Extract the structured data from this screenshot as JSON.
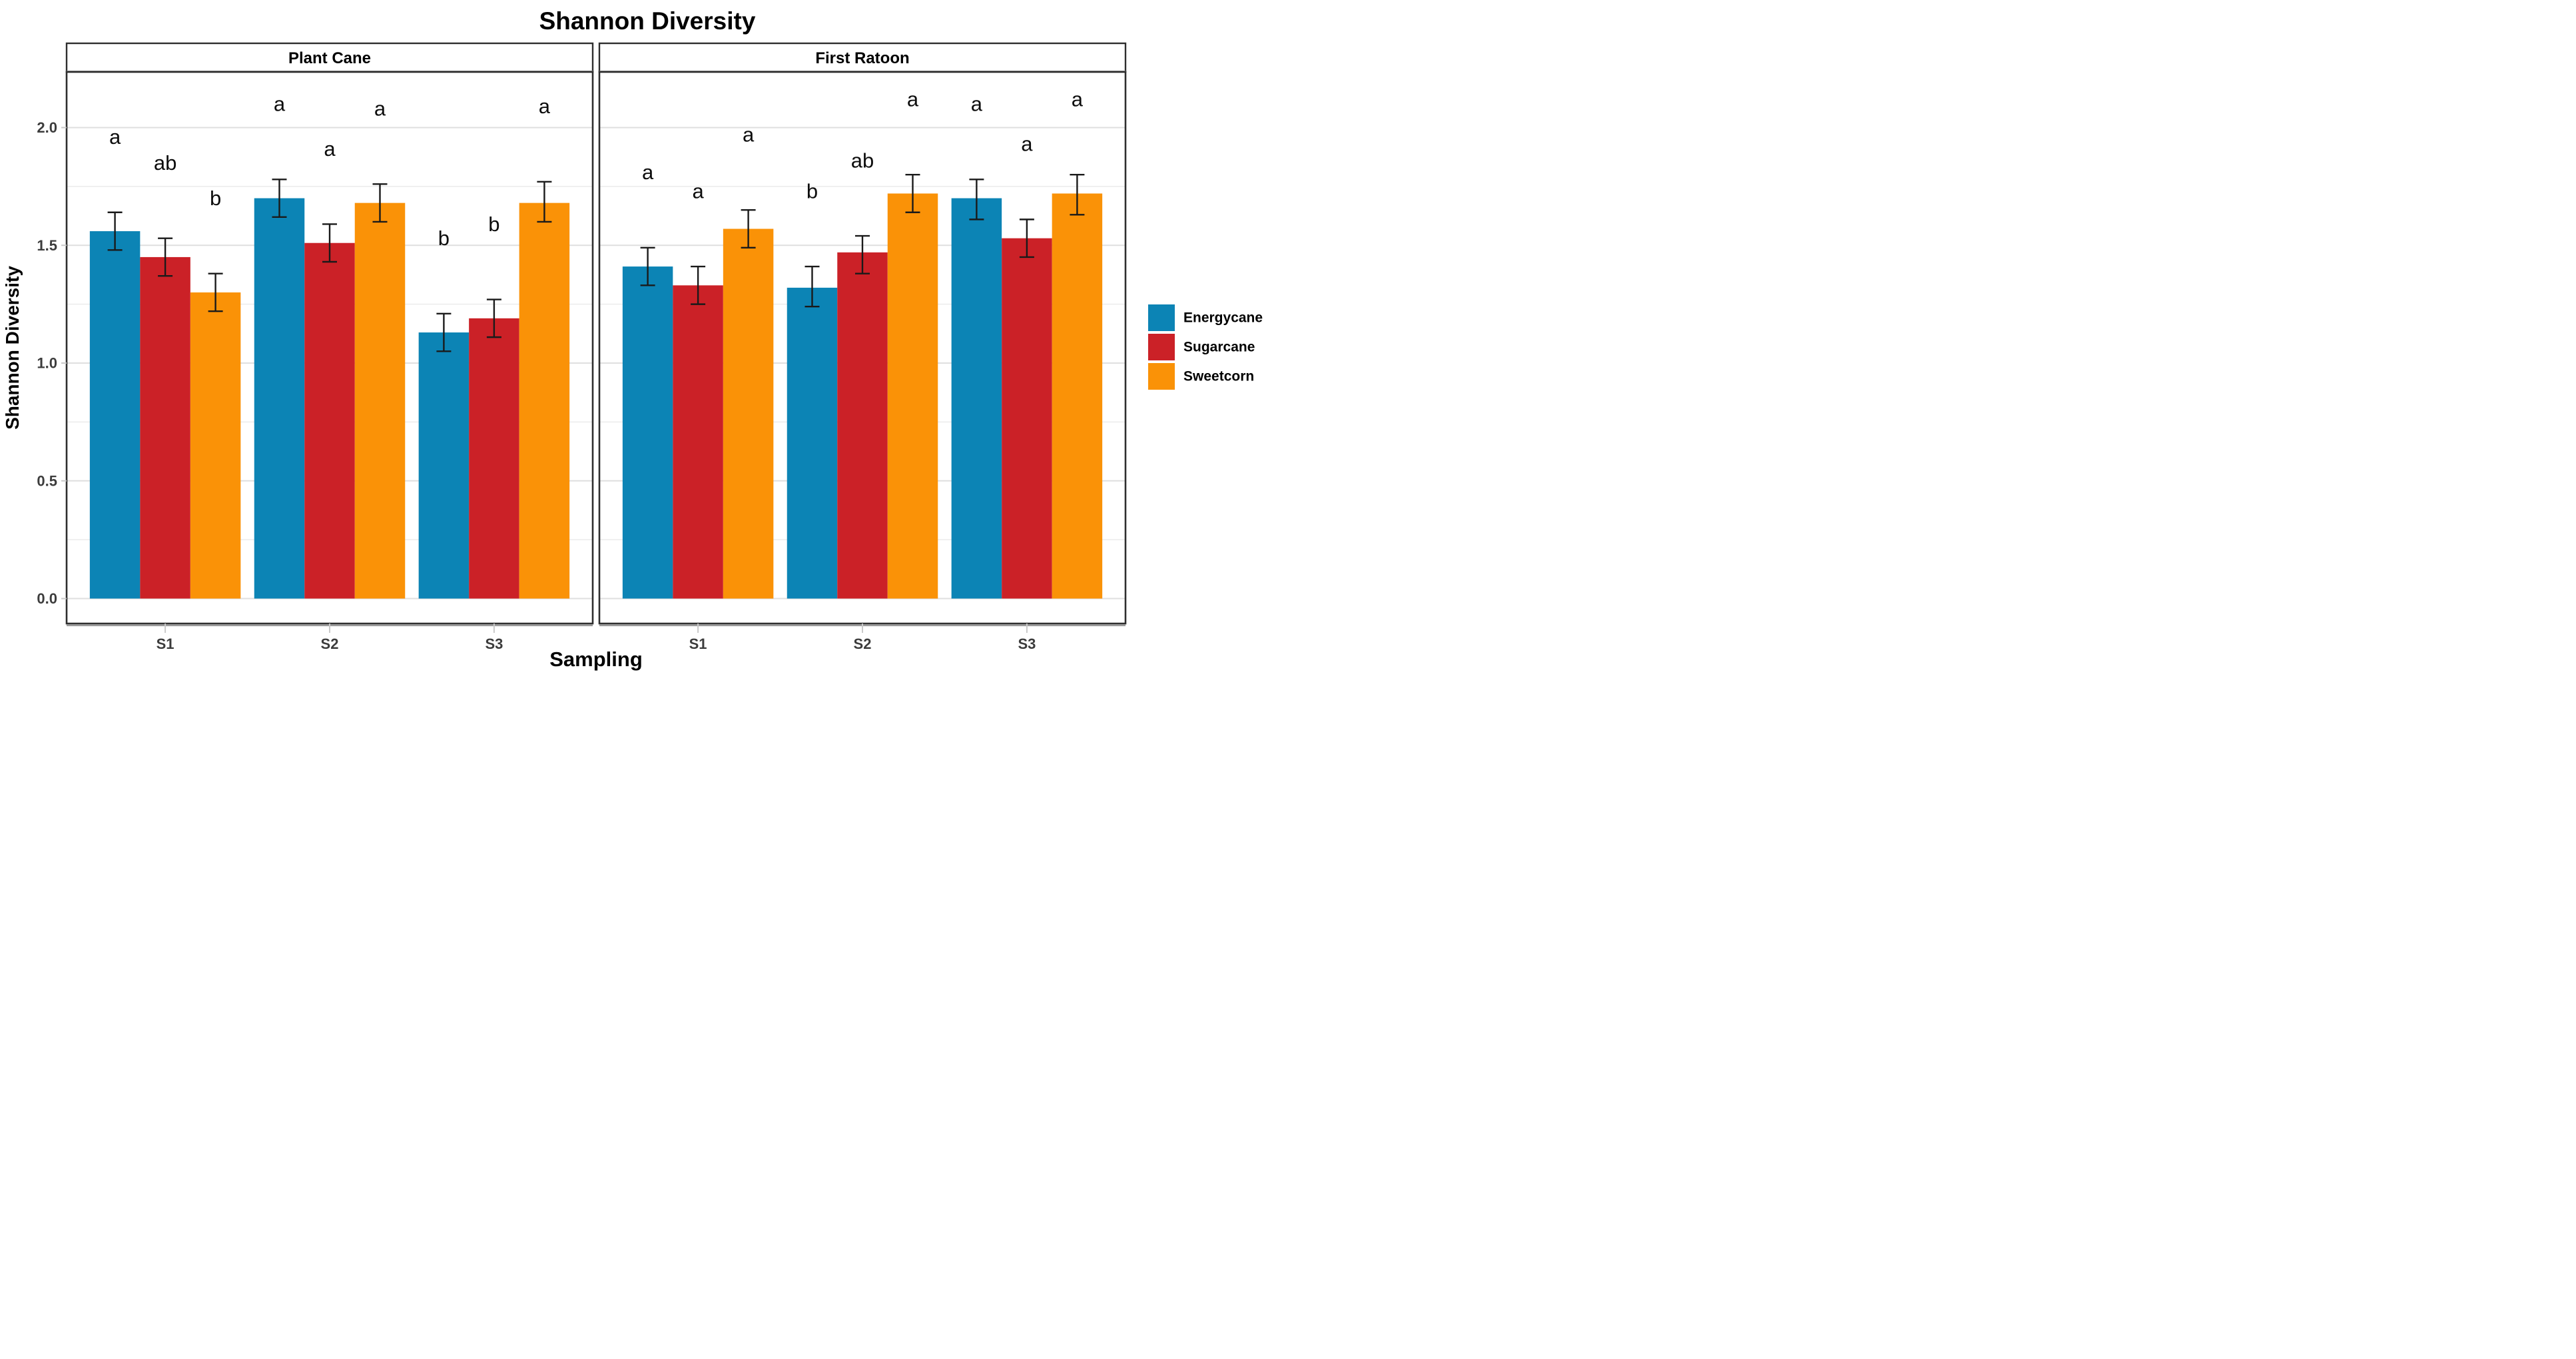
{
  "title": "Shannon Diversity",
  "chart_data": {
    "type": "bar",
    "title": "Shannon Diversity",
    "xlabel": "Sampling",
    "ylabel": "Shannon Diversity",
    "ylim": [
      -0.106,
      2.236
    ],
    "yticks": [
      0,
      0.5,
      1,
      1.5,
      2
    ],
    "ytick_labels": [
      "0.0",
      "0.5",
      "1.0",
      "1.5",
      "2.0"
    ],
    "grid_step": 0.25,
    "grid_on": true,
    "legend_position": "right",
    "categories": [
      "S1",
      "S2",
      "S3"
    ],
    "legend": [
      {
        "name": "Energycane",
        "color": "#0C84B5"
      },
      {
        "name": "Sugarcane",
        "color": "#CB2127"
      },
      {
        "name": "Sweetcorn",
        "color": "#FA9207"
      }
    ],
    "letter_offset": 0.32,
    "facets": [
      {
        "label": "Plant Cane",
        "series": [
          {
            "name": "Energycane",
            "means": [
              1.56,
              1.7,
              1.13
            ],
            "err_low": [
              1.48,
              1.62,
              1.05
            ],
            "err_high": [
              1.64,
              1.78,
              1.21
            ],
            "letters": [
              "a",
              "a",
              "b"
            ]
          },
          {
            "name": "Sugarcane",
            "means": [
              1.45,
              1.51,
              1.19
            ],
            "err_low": [
              1.37,
              1.43,
              1.11
            ],
            "err_high": [
              1.53,
              1.59,
              1.27
            ],
            "letters": [
              "ab",
              "a",
              "b"
            ]
          },
          {
            "name": "Sweetcorn",
            "means": [
              1.3,
              1.68,
              1.68
            ],
            "err_low": [
              1.22,
              1.6,
              1.6
            ],
            "err_high": [
              1.38,
              1.76,
              1.77
            ],
            "letters": [
              "b",
              "a",
              "a"
            ]
          }
        ]
      },
      {
        "label": "First Ratoon",
        "series": [
          {
            "name": "Energycane",
            "means": [
              1.41,
              1.32,
              1.7
            ],
            "err_low": [
              1.33,
              1.24,
              1.61
            ],
            "err_high": [
              1.49,
              1.41,
              1.78
            ],
            "letters": [
              "a",
              "b",
              "a"
            ]
          },
          {
            "name": "Sugarcane",
            "means": [
              1.33,
              1.47,
              1.53
            ],
            "err_low": [
              1.25,
              1.38,
              1.45
            ],
            "err_high": [
              1.41,
              1.54,
              1.61
            ],
            "letters": [
              "a",
              "ab",
              "a"
            ]
          },
          {
            "name": "Sweetcorn",
            "means": [
              1.57,
              1.72,
              1.72
            ],
            "err_low": [
              1.49,
              1.64,
              1.63
            ],
            "err_high": [
              1.65,
              1.8,
              1.8
            ],
            "letters": [
              "a",
              "a",
              "a"
            ]
          }
        ]
      }
    ],
    "style": {
      "background": "#ffffff",
      "panel_background": "#ffffff",
      "panel_border_color": "#2e2e2e",
      "strip_background": "#ffffff",
      "strip_shadow_color": "#9a9a9a",
      "grid_major_color": "#dfdfdf",
      "grid_minor_color": "#ebebeb",
      "axis_tick_color": "#c9c9c9",
      "error_bar_color": "#1a1a1a",
      "tick_label_color": "#3c3c3c",
      "text_color": "#000000"
    }
  }
}
